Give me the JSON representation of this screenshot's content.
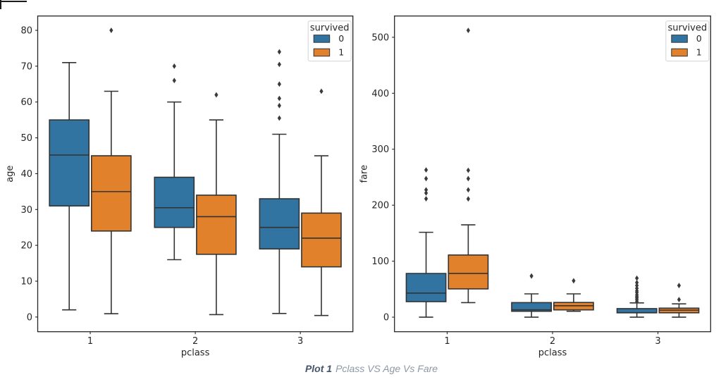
{
  "caption": {
    "label": "Plot 1",
    "text": "Pclass VS Age Vs Fare",
    "label_color": "#44546a",
    "text_color": "#8d98a6"
  },
  "colors": {
    "survived_0": "#3274a1",
    "survived_1": "#e1812c",
    "box_edge": "#333333",
    "flier": "#3a3a3a",
    "axis": "#262626",
    "legend_border": "#d2d2d2"
  },
  "chart_data": [
    {
      "type": "box",
      "xlabel": "pclass",
      "ylabel": "age",
      "categories": [
        "1",
        "2",
        "3"
      ],
      "ylim": [
        -4.1,
        84.0
      ],
      "yticks": [
        0,
        10,
        20,
        30,
        40,
        50,
        60,
        70,
        80
      ],
      "grid": false,
      "legend": {
        "title": "survived",
        "position": "upper right",
        "entries": [
          {
            "label": "0",
            "color": "#3274a1"
          },
          {
            "label": "1",
            "color": "#e1812c"
          }
        ]
      },
      "series": [
        {
          "name": "0",
          "color": "#3274a1",
          "boxes": [
            {
              "category": "1",
              "whislo": 2,
              "q1": 31,
              "med": 45.2,
              "q3": 55,
              "whishi": 71,
              "fliers": []
            },
            {
              "category": "2",
              "whislo": 16,
              "q1": 25,
              "med": 30.5,
              "q3": 39,
              "whishi": 60,
              "fliers": [
                66,
                70
              ]
            },
            {
              "category": "3",
              "whislo": 1,
              "q1": 19,
              "med": 25,
              "q3": 33,
              "whishi": 51,
              "fliers": [
                55.5,
                59,
                61,
                65,
                70.5,
                74
              ]
            }
          ]
        },
        {
          "name": "1",
          "color": "#e1812c",
          "boxes": [
            {
              "category": "1",
              "whislo": 0.92,
              "q1": 24,
              "med": 35,
              "q3": 45,
              "whishi": 63,
              "fliers": [
                80
              ]
            },
            {
              "category": "2",
              "whislo": 0.67,
              "q1": 17.5,
              "med": 28,
              "q3": 34,
              "whishi": 55,
              "fliers": [
                62
              ]
            },
            {
              "category": "3",
              "whislo": 0.42,
              "q1": 14,
              "med": 22,
              "q3": 29,
              "whishi": 45,
              "fliers": [
                63
              ]
            }
          ]
        }
      ]
    },
    {
      "type": "box",
      "xlabel": "pclass",
      "ylabel": "fare",
      "categories": [
        "1",
        "2",
        "3"
      ],
      "ylim": [
        -26,
        538
      ],
      "yticks": [
        0,
        100,
        200,
        300,
        400,
        500
      ],
      "grid": false,
      "legend": {
        "title": "survived",
        "position": "upper right",
        "entries": [
          {
            "label": "0",
            "color": "#3274a1"
          },
          {
            "label": "1",
            "color": "#e1812c"
          }
        ]
      },
      "series": [
        {
          "name": "0",
          "color": "#3274a1",
          "boxes": [
            {
              "category": "1",
              "whislo": 0,
              "q1": 27.7,
              "med": 43,
              "q3": 78,
              "whishi": 151.6,
              "fliers": [
                211.5,
                221.8,
                227.5,
                247.5,
                263
              ]
            },
            {
              "category": "2",
              "whislo": 0,
              "q1": 10.5,
              "med": 13,
              "q3": 26,
              "whishi": 41.6,
              "fliers": [
                73.5
              ]
            },
            {
              "category": "3",
              "whislo": 0,
              "q1": 7.75,
              "med": 8.05,
              "q3": 15.25,
              "whishi": 25.5,
              "fliers": [
                27.9,
                31.3,
                34.4,
                36.7,
                39.7,
                44,
                47,
                51.5,
                56.5,
                61.8,
                69.6
              ]
            }
          ]
        },
        {
          "name": "1",
          "color": "#e1812c",
          "boxes": [
            {
              "category": "1",
              "whislo": 25.9,
              "q1": 50.5,
              "med": 78,
              "q3": 111,
              "whishi": 164.9,
              "fliers": [
                211.3,
                227.5,
                247.5,
                262.4,
                512.3
              ]
            },
            {
              "category": "2",
              "whislo": 10.5,
              "q1": 13,
              "med": 20.5,
              "q3": 26.25,
              "whishi": 41.6,
              "fliers": [
                65
              ]
            },
            {
              "category": "3",
              "whislo": 0,
              "q1": 7.8,
              "med": 12.5,
              "q3": 16.1,
              "whishi": 23.7,
              "fliers": [
                31.4,
                56.5
              ]
            }
          ]
        }
      ]
    }
  ]
}
